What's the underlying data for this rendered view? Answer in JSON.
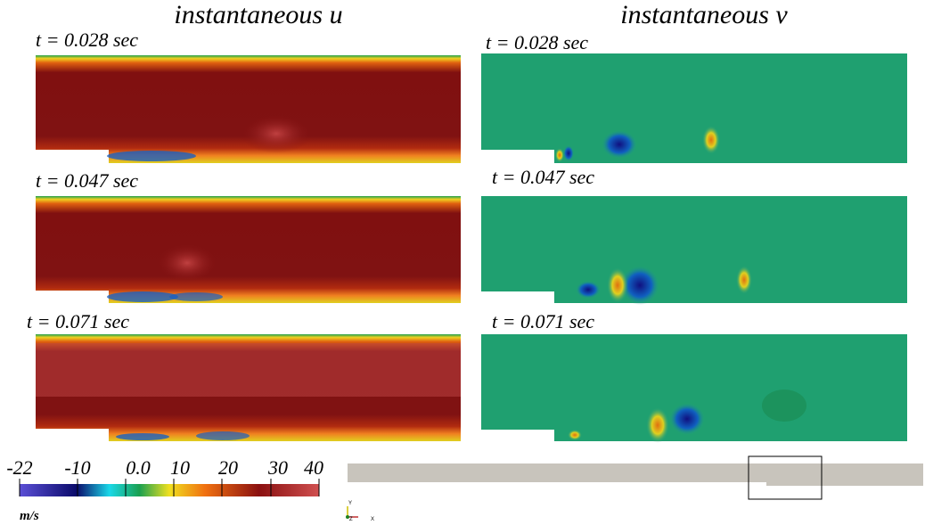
{
  "columns": [
    {
      "title": "instantaneous u",
      "panels": [
        {
          "label": "t = 0.028 sec"
        },
        {
          "label": "t = 0.047 sec"
        },
        {
          "label": "t = 0.071 sec"
        }
      ]
    },
    {
      "title": "instantaneous v",
      "panels": [
        {
          "label": "t = 0.028 sec"
        },
        {
          "label": "t = 0.047 sec"
        },
        {
          "label": "t = 0.071 sec"
        }
      ]
    }
  ],
  "colorbar": {
    "ticks": [
      "-22",
      "-10",
      "0.0",
      "10",
      "20",
      "30",
      "40"
    ],
    "unit": "m/s"
  },
  "axes_triad": {
    "y": "Y",
    "z": "Z",
    "x": "X"
  }
}
